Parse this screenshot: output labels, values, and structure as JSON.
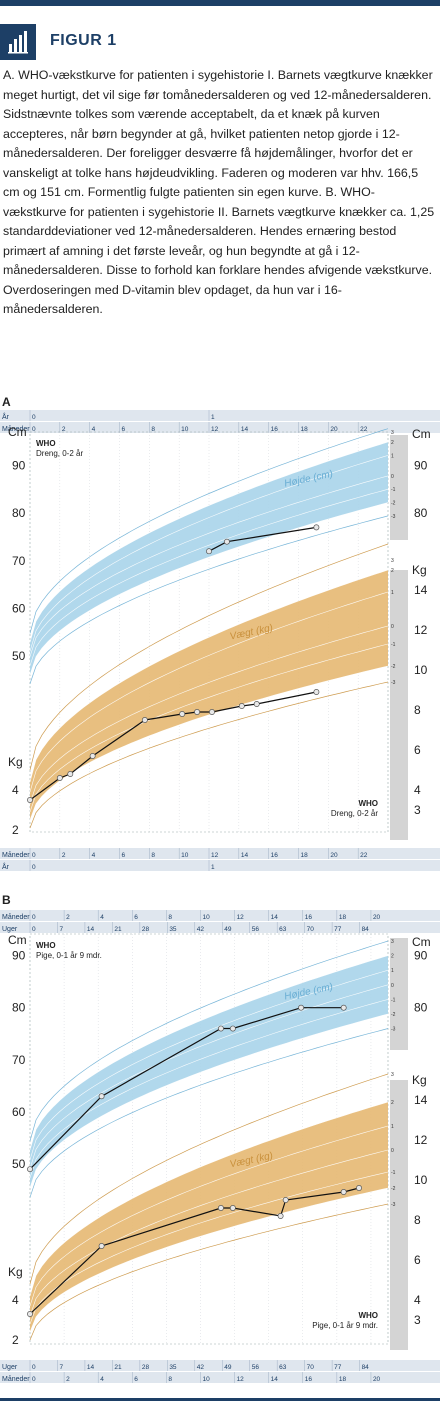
{
  "header": {
    "figure_label": "FIGUR 1",
    "icon": "bar-chart-icon",
    "accent_color": "#1d3f66"
  },
  "caption": "A. WHO-vækstkurve for patienten i sygehistorie I. Barnets vægtkurve knækker meget hurtigt, det vil sige før tomånedersalderen og ved 12-månedersalderen. Sidstnævnte tolkes som værende acceptabelt, da et knæk på kurven accepteres, når børn begynder at gå, hvilket patienten netop gjorde i 12-månedersalderen. Der foreligger desværre få højdemålinger, hvorfor det er vanskeligt at tolke hans højdeudvikling. Faderen og moderen var hhv. 166,5 cm og 151 cm. Formentlig fulgte patienten sin egen kurve. B. WHO-vækstkurve for patienten i sygehistorie II. Barnets vægtkurve knækker ca. 1,25 standarddeviationer ved 12-månedersalderen. Hendes ernæring bestod primært af amning i det første leveår, og hun begyndte at gå i 12-månedersalderen. Disse to forhold kan forklare hendes afvigende vækstkurve. Overdoseringen med D-vitamin blev opdaget, da hun var i 16-månedersalderen.",
  "chart_data": [
    {
      "panel": "A",
      "type": "line",
      "who_label_top": [
        "WHO",
        "Dreng, 0-2 år"
      ],
      "who_label_bottom": [
        "WHO",
        "Dreng, 0-2 år"
      ],
      "ruler_top": [
        {
          "label": "År",
          "ticks": [
            "0",
            "1"
          ]
        },
        {
          "label": "Måneder",
          "ticks": [
            "0",
            "2",
            "4",
            "6",
            "8",
            "10",
            "12",
            "14",
            "16",
            "18",
            "20",
            "22"
          ]
        }
      ],
      "ruler_bottom": [
        {
          "label": "Måneder",
          "ticks": [
            "0",
            "2",
            "4",
            "6",
            "8",
            "10",
            "12",
            "14",
            "16",
            "18",
            "20",
            "22"
          ]
        },
        {
          "label": "År",
          "ticks": [
            "0",
            "1"
          ]
        }
      ],
      "x_range_months": [
        0,
        24
      ],
      "height": {
        "label": "Højde (cm)",
        "unit": "Cm",
        "ticks_left": [
          "50",
          "60",
          "70",
          "80",
          "90"
        ],
        "ticks_right": [
          "80",
          "90"
        ],
        "y_range": [
          45,
          97
        ],
        "sd_labels": [
          "3",
          "2",
          "1",
          "0",
          "-1",
          "-2",
          "-3"
        ],
        "band_start": [
          54.8,
          52.9,
          51.0,
          49.9,
          48.0,
          46.1,
          44.2
        ],
        "band_end": [
          97.7,
          94.9,
          92.1,
          87.8,
          85.0,
          82.2,
          79.4
        ],
        "points_months": [
          12,
          13.2,
          19.2
        ],
        "points_values": [
          72,
          74,
          77
        ]
      },
      "weight": {
        "label": "Vægt (kg)",
        "unit": "Kg",
        "ticks_left": [
          "2",
          "4"
        ],
        "ticks_right": [
          "3",
          "4",
          "6",
          "8",
          "10",
          "12",
          "14"
        ],
        "y_range": [
          1.5,
          15.5
        ],
        "sd_labels": [
          "3",
          "2",
          "1",
          "0",
          "-1",
          "-2",
          "-3"
        ],
        "band_start": [
          5.0,
          4.4,
          3.9,
          3.3,
          2.9,
          2.5,
          2.1
        ],
        "band_end": [
          16.3,
          15.0,
          13.9,
          12.2,
          11.3,
          10.2,
          9.4
        ],
        "points_months": [
          0,
          2,
          2.7,
          4.2,
          7.7,
          10.2,
          11.2,
          12.2,
          14.2,
          15.2,
          19.2
        ],
        "points_values": [
          3.5,
          4.6,
          4.8,
          5.7,
          7.5,
          7.8,
          7.9,
          7.9,
          8.2,
          8.3,
          8.9
        ]
      }
    },
    {
      "panel": "B",
      "type": "line",
      "who_label_top": [
        "WHO",
        "Pige, 0-1 år 9 mdr."
      ],
      "who_label_bottom": [
        "WHO",
        "Pige, 0-1 år 9 mdr."
      ],
      "ruler_top": [
        {
          "label": "Måneder",
          "ticks": [
            "0",
            "2",
            "4",
            "6",
            "8",
            "10",
            "12",
            "14",
            "16",
            "18",
            "20"
          ]
        },
        {
          "label": "Uger",
          "ticks": [
            "0",
            "7",
            "14",
            "21",
            "28",
            "35",
            "42",
            "49",
            "56",
            "63",
            "70",
            "77",
            "84"
          ]
        }
      ],
      "ruler_bottom": [
        {
          "label": "Uger",
          "ticks": [
            "0",
            "7",
            "14",
            "21",
            "28",
            "35",
            "42",
            "49",
            "56",
            "63",
            "70",
            "77",
            "84"
          ]
        },
        {
          "label": "Måneder",
          "ticks": [
            "0",
            "2",
            "4",
            "6",
            "8",
            "10",
            "12",
            "14",
            "16",
            "18",
            "20"
          ]
        }
      ],
      "x_range_months": [
        0,
        21
      ],
      "height": {
        "label": "Højde (cm)",
        "unit": "Cm",
        "ticks_left": [
          "50",
          "60",
          "70",
          "80",
          "90"
        ],
        "ticks_right": [
          "80",
          "90"
        ],
        "y_range": [
          45,
          93
        ],
        "sd_labels": [
          "3",
          "2",
          "1",
          "0",
          "-1",
          "-2",
          "-3"
        ],
        "band_start": [
          54.4,
          52.7,
          50.8,
          49.1,
          47.3,
          45.4,
          43.6
        ],
        "band_end": [
          92.8,
          90.0,
          87.2,
          84.4,
          81.6,
          78.8,
          76.0
        ],
        "points_months": [
          0,
          4.2,
          11.2,
          11.9,
          15.9,
          18.4
        ],
        "points_values": [
          49,
          63,
          76,
          76,
          80,
          80
        ]
      },
      "weight": {
        "label": "Vægt (kg)",
        "unit": "Kg",
        "ticks_left": [
          "2",
          "4"
        ],
        "ticks_right": [
          "3",
          "4",
          "6",
          "8",
          "10",
          "12",
          "14"
        ],
        "y_range": [
          1.5,
          15.5
        ],
        "sd_labels": [
          "3",
          "2",
          "1",
          "0",
          "-1",
          "-2",
          "-3"
        ],
        "band_start": [
          4.8,
          4.2,
          3.7,
          3.2,
          2.8,
          2.4,
          2.0
        ],
        "band_end": [
          15.3,
          13.9,
          12.7,
          11.5,
          10.4,
          9.6,
          8.8
        ],
        "points_months": [
          0,
          4.2,
          11.2,
          11.9,
          14.7,
          15.0,
          18.4,
          19.3
        ],
        "points_values": [
          3.3,
          6.7,
          8.6,
          8.6,
          8.2,
          9.0,
          9.4,
          9.6
        ]
      }
    }
  ],
  "palette": {
    "height_band": "#a9d4ea",
    "height_line": "#6aaed4",
    "weight_band": "#e5b872",
    "weight_line": "#c9913d",
    "ruler_bg": "#dfe6ee",
    "ruler_text": "#1d3f66",
    "right_strip": "#d4d4d4"
  }
}
